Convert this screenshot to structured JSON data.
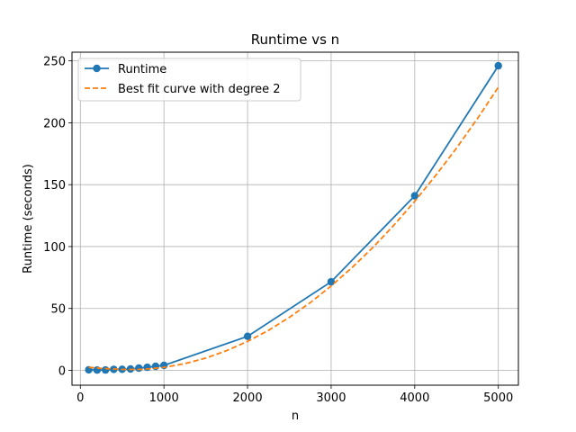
{
  "chart_data": {
    "type": "line",
    "title": "Runtime vs n",
    "xlabel": "n",
    "ylabel": "Runtime (seconds)",
    "xlim": [
      -100,
      5240
    ],
    "ylim": [
      -12,
      257
    ],
    "xticks": [
      0,
      1000,
      2000,
      3000,
      4000,
      5000
    ],
    "yticks": [
      0,
      50,
      100,
      150,
      200,
      250
    ],
    "grid": true,
    "legend_position": "top-left",
    "series": [
      {
        "name": "Runtime",
        "style": "solid-marker",
        "color": "#1f77b4",
        "x": [
          100,
          200,
          300,
          400,
          500,
          600,
          700,
          800,
          900,
          1000,
          2000,
          3000,
          4000,
          5000
        ],
        "y": [
          0.4,
          0.2,
          0.3,
          0.8,
          0.9,
          1.1,
          1.8,
          2.5,
          3.3,
          4.0,
          27.5,
          71.5,
          141.0,
          246.0
        ]
      },
      {
        "name": "Best fit curve with degree 2",
        "style": "dashed",
        "color": "#ff7f0e",
        "x": [
          100,
          250,
          500,
          750,
          1000,
          1250,
          1500,
          1750,
          2000,
          2250,
          2500,
          2750,
          3000,
          3250,
          3500,
          3750,
          4000,
          4250,
          4500,
          4750,
          5000
        ],
        "y": [
          2.4,
          1.6,
          0.7,
          0.8,
          2.4,
          5.4,
          9.9,
          15.9,
          23.4,
          32.3,
          42.8,
          54.7,
          68.1,
          83.0,
          99.3,
          117.2,
          136.5,
          157.3,
          179.6,
          203.4,
          228.7
        ]
      }
    ]
  }
}
